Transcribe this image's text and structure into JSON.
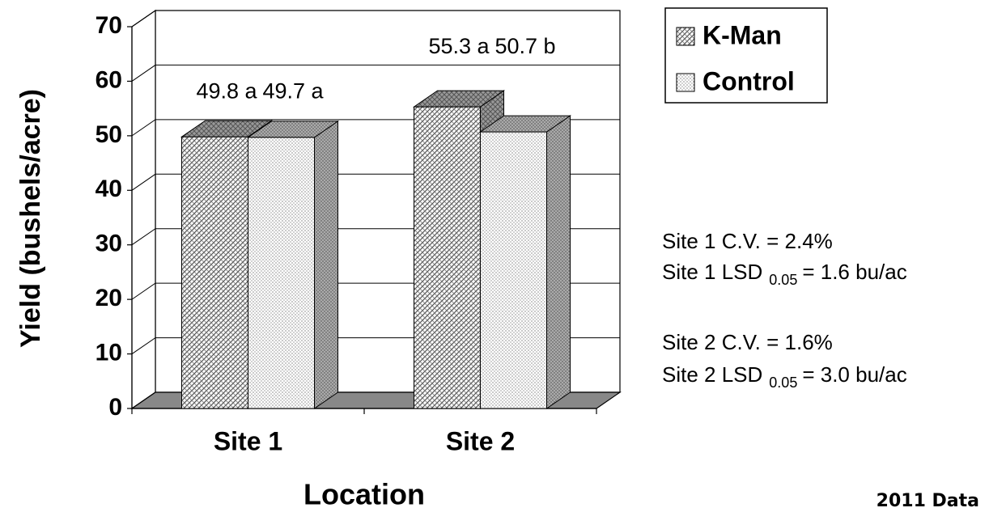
{
  "chart_data": {
    "type": "bar3d",
    "x_label": "Location",
    "y_label": "Yield (bushels/acre)",
    "categories": [
      "Site 1",
      "Site 2"
    ],
    "series": [
      {
        "name": "K-Man",
        "color": "#b8b8b8",
        "pattern": "crosshatch",
        "values": [
          49.8,
          55.3
        ],
        "value_labels": [
          "49.8 a",
          "55.3 a"
        ]
      },
      {
        "name": "Control",
        "color": "#e8e8e8",
        "pattern": "dots",
        "values": [
          49.7,
          50.7
        ],
        "value_labels": [
          "49.7 a",
          "50.7 b"
        ]
      }
    ],
    "ylim": [
      0,
      70
    ],
    "yticks": [
      0,
      10,
      20,
      30,
      40,
      50,
      60,
      70
    ],
    "grid": true,
    "legend": "top-right",
    "annotations": [
      {
        "text": "Site 1 C.V. = 2.4%"
      },
      {
        "text": "Site 1 LSD",
        "sub": "0.05",
        "after": "= 1.6 bu/ac"
      },
      {
        "text": "Site 2 C.V. = 1.6%"
      },
      {
        "text": "Site 2 LSD",
        "sub": "0.05",
        "after": "= 3.0 bu/ac"
      }
    ],
    "footnote": "2011 Data"
  }
}
